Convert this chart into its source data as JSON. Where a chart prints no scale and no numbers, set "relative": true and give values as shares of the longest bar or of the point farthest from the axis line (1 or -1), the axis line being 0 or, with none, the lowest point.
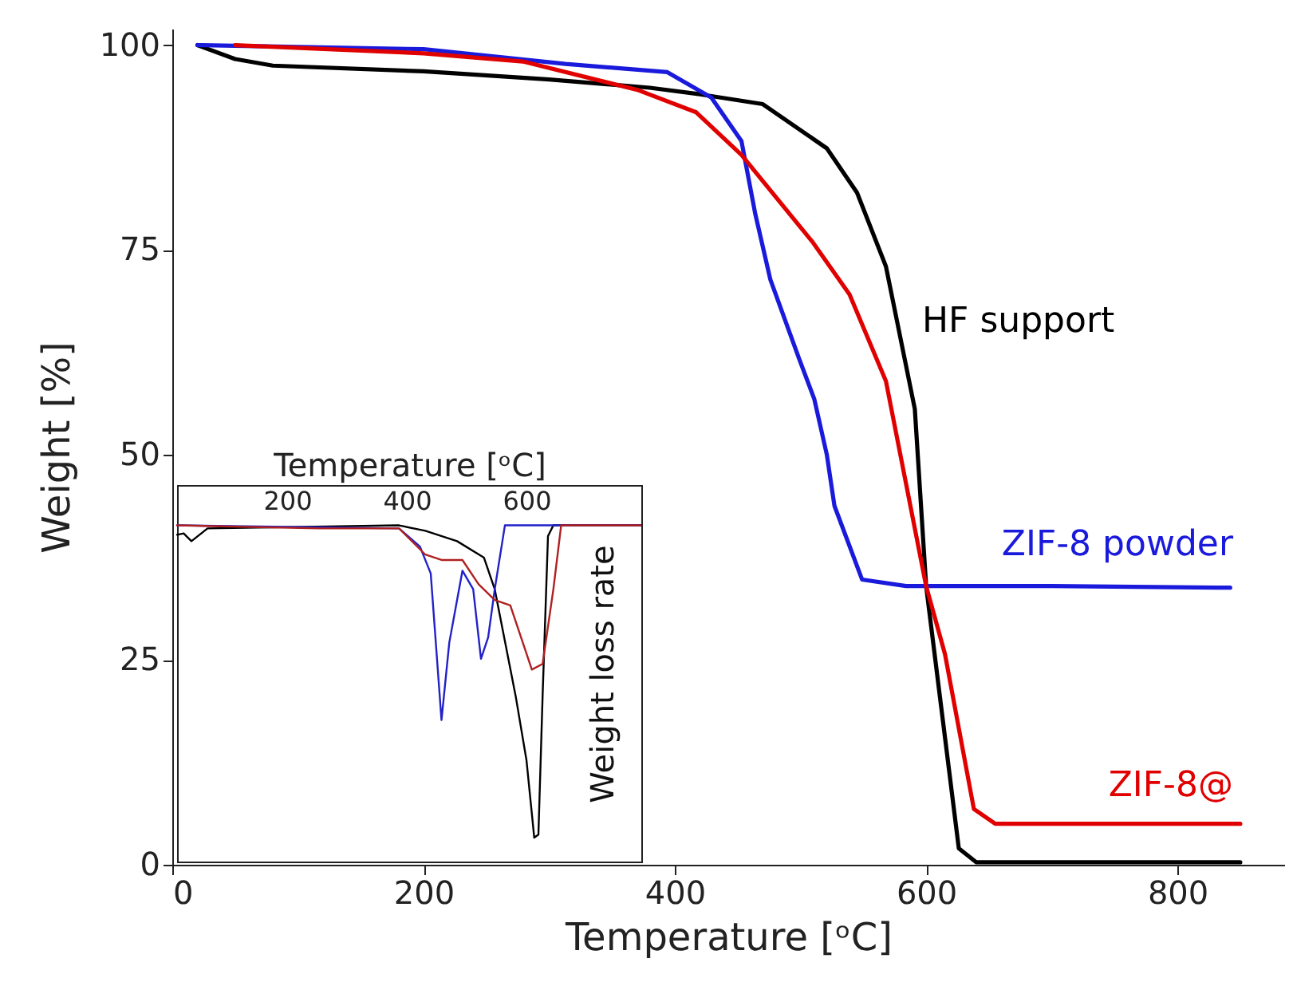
{
  "chart_data": [
    {
      "type": "line",
      "xlabel": "Temperature [ᵒC]",
      "ylabel": "Weight [%]",
      "xlim": [
        0,
        885
      ],
      "ylim": [
        0,
        102
      ],
      "xticks": [
        0,
        200,
        400,
        600,
        800
      ],
      "yticks": [
        0,
        25,
        50,
        75,
        100
      ],
      "series": [
        {
          "name": "HF support",
          "color": "#000000",
          "x": [
            20,
            50,
            80,
            200,
            300,
            380,
            420,
            470,
            521,
            545,
            568,
            591,
            600,
            613,
            626,
            640,
            850
          ],
          "values": [
            100,
            98.3,
            97.5,
            96.8,
            95.8,
            94.8,
            94,
            92.8,
            87.4,
            82,
            73,
            55.6,
            34,
            18,
            2,
            0.3,
            0.3
          ]
        },
        {
          "name": "ZIF-8 powder",
          "color": "#1a1adc",
          "x": [
            20,
            200,
            313,
            394,
            429,
            453,
            464,
            476,
            499,
            511,
            521,
            527,
            549,
            584,
            700,
            842
          ],
          "values": [
            100,
            99.5,
            97.7,
            96.7,
            93.6,
            88.3,
            79.4,
            71.4,
            61.7,
            56.8,
            50,
            43.8,
            34.8,
            34,
            34,
            33.8
          ]
        },
        {
          "name": "ZIF-8@",
          "color": "#e00000",
          "x": [
            50,
            200,
            279,
            371,
            417,
            453,
            510,
            539,
            568,
            600,
            615,
            638,
            655,
            850
          ],
          "values": [
            100,
            99,
            98,
            94.5,
            91.8,
            86.6,
            75.9,
            69.6,
            59,
            34,
            25.7,
            6.8,
            5,
            5
          ]
        }
      ]
    },
    {
      "type": "line",
      "relative": true,
      "xlabel": "Temperature [ᵒC]",
      "ylabel": "Weight loss rate",
      "xlim": [
        16,
        792
      ],
      "xticks": [
        200,
        400,
        600
      ],
      "series": [
        {
          "color": "#000000",
          "x": [
            16,
            27,
            40,
            67,
            387,
            431,
            484,
            529,
            547,
            582,
            600,
            609,
            613,
            620,
            627,
            636,
            645,
            791
          ],
          "values": [
            0.972,
            0.976,
            0.953,
            0.991,
            1,
            0.984,
            0.953,
            0.904,
            0.81,
            0.492,
            0.302,
            0.143,
            0.071,
            0.08,
            0.492,
            0.968,
            1,
            1
          ]
        },
        {
          "color": "#2222c8",
          "x": [
            16,
            387,
            422,
            440,
            458,
            471,
            493,
            511,
            524,
            536,
            547,
            564,
            791
          ],
          "values": [
            1,
            0.991,
            0.937,
            0.857,
            0.421,
            0.651,
            0.865,
            0.81,
            0.603,
            0.667,
            0.81,
            1,
            1
          ]
        },
        {
          "color": "#b02020",
          "x": [
            16,
            253,
            387,
            431,
            458,
            493,
            520,
            547,
            573,
            600,
            609,
            627,
            645,
            658,
            791
          ],
          "values": [
            1,
            0.991,
            0.991,
            0.913,
            0.897,
            0.897,
            0.825,
            0.778,
            0.762,
            0.619,
            0.571,
            0.588,
            0.81,
            1,
            1
          ]
        }
      ]
    }
  ]
}
